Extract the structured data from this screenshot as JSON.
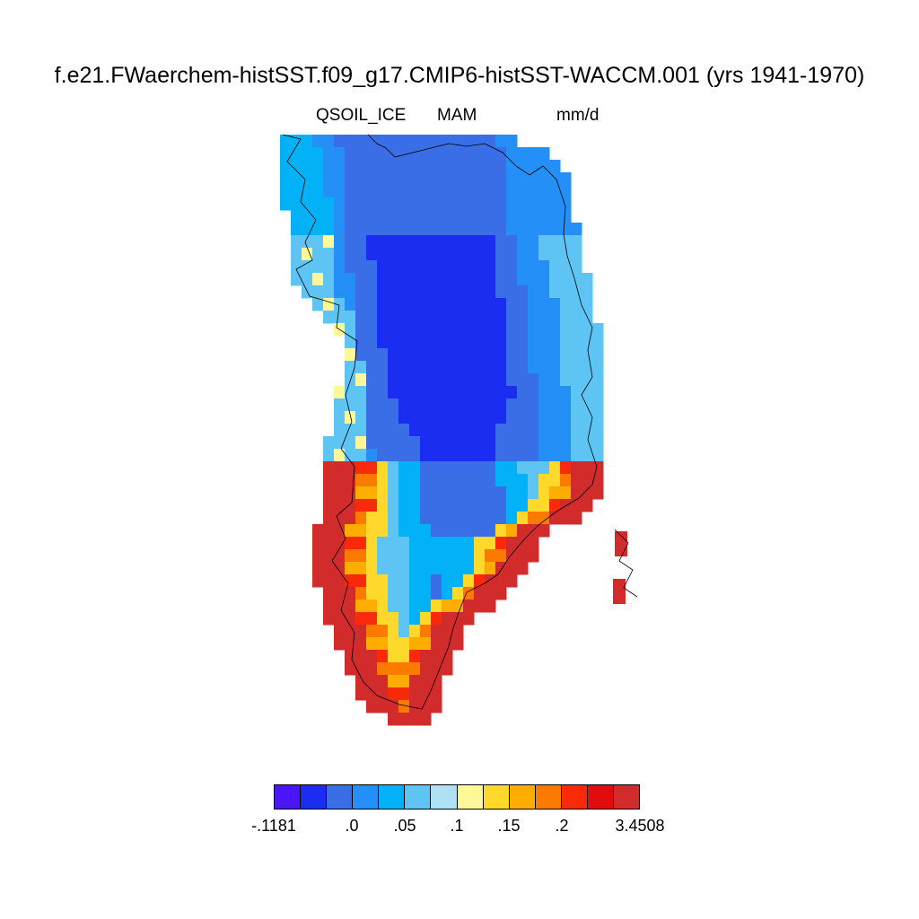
{
  "title": "f.e21.FWaerchem-histSST.f09_g17.CMIP6-histSST-WACCM.001 (yrs 1941-1970)",
  "subtitle": {
    "variable": "QSOIL_ICE",
    "season": "MAM",
    "units": "mm/d"
  },
  "colorbar": {
    "colors": [
      "#4b16f8",
      "#1a2df0",
      "#3a6ee6",
      "#238ff7",
      "#03b1f6",
      "#5dc4f4",
      "#b0e0f4",
      "#fef898",
      "#fed82a",
      "#fdac00",
      "#fb7a00",
      "#f92a0a",
      "#e10c0c",
      "#d22b2b"
    ],
    "labels": [
      "-.1181",
      ".0",
      ".05",
      ".1",
      ".15",
      ".2",
      "3.4508"
    ]
  },
  "chart_data": {
    "type": "heatmap",
    "title": "f.e21.FWaerchem-histSST.f09_g17.CMIP6-histSST-WACCM.001 (yrs 1941-1970)",
    "variable": "QSOIL_ICE",
    "season": "MAM",
    "units": "mm/d",
    "region": "Greenland",
    "color_levels": [
      -0.1181,
      0.0,
      0.05,
      0.1,
      0.15,
      0.2,
      3.4508
    ],
    "pattern": "lowest values over the northern/central ice sheet interior; highest values along the southern and south-western margins"
  }
}
